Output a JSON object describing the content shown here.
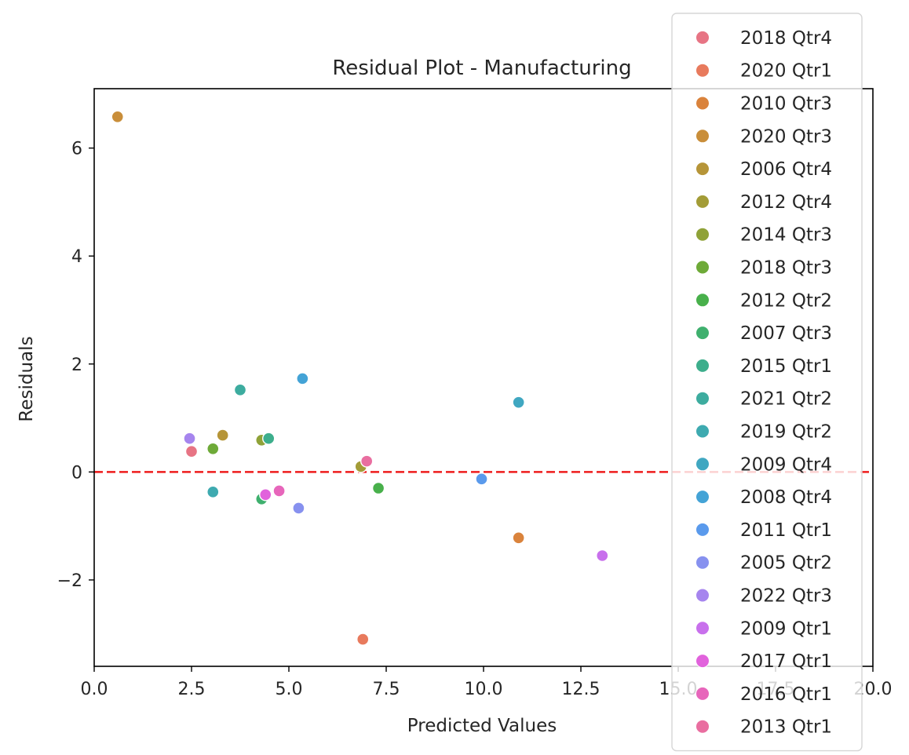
{
  "chart_data": {
    "type": "scatter",
    "title": "Residual Plot - Manufacturing",
    "xlabel": "Predicted Values",
    "ylabel": "Residuals",
    "xlim": [
      0,
      20
    ],
    "ylim": [
      -3.6,
      7.1
    ],
    "x_ticks": [
      0,
      2.5,
      5,
      7.5,
      10,
      12.5,
      15,
      17.5,
      20
    ],
    "x_tick_labels": [
      "0.0",
      "2.5",
      "5.0",
      "7.5",
      "10.0",
      "12.5",
      "15.0",
      "17.5",
      "20.0"
    ],
    "y_ticks": [
      -2,
      0,
      2,
      4,
      6
    ],
    "y_tick_labels": [
      "−2",
      "0",
      "2",
      "4",
      "6"
    ],
    "grid": false,
    "reference_line": {
      "y": 0,
      "style": "dashed",
      "color": "#ee1c1c"
    },
    "legend_placement": "upper-right, overlapping plot",
    "series": [
      {
        "name": "2018 Qtr4",
        "color": "#e77484",
        "points": [
          [
            2.5,
            0.38
          ]
        ]
      },
      {
        "name": "2020 Qtr1",
        "color": "#e87a5d",
        "points": [
          [
            6.9,
            -3.1
          ]
        ]
      },
      {
        "name": "2010 Qtr3",
        "color": "#da833c",
        "points": [
          [
            10.9,
            -1.22
          ]
        ]
      },
      {
        "name": "2020 Qtr3",
        "color": "#c98e3a",
        "points": [
          [
            0.6,
            6.58
          ]
        ]
      },
      {
        "name": "2006 Qtr4",
        "color": "#b69538",
        "points": [
          [
            3.3,
            0.68
          ]
        ]
      },
      {
        "name": "2012 Qtr4",
        "color": "#a39c37",
        "points": [
          [
            6.85,
            0.1
          ]
        ]
      },
      {
        "name": "2014 Qtr3",
        "color": "#8fa238",
        "points": [
          [
            4.3,
            0.59
          ]
        ]
      },
      {
        "name": "2018 Qtr3",
        "color": "#6eaa38",
        "points": [
          [
            3.05,
            0.43
          ]
        ]
      },
      {
        "name": "2012 Qtr2",
        "color": "#48b04b",
        "points": [
          [
            7.3,
            -0.3
          ]
        ]
      },
      {
        "name": "2007 Qtr3",
        "color": "#3fb06e",
        "points": [
          [
            4.3,
            -0.5
          ]
        ]
      },
      {
        "name": "2015 Qtr1",
        "color": "#3dae8c",
        "points": [
          [
            4.48,
            0.62
          ]
        ]
      },
      {
        "name": "2021 Qtr2",
        "color": "#3dac9f",
        "points": [
          [
            3.75,
            1.52
          ]
        ]
      },
      {
        "name": "2019 Qtr2",
        "color": "#3eaab0",
        "points": [
          [
            3.05,
            -0.37
          ]
        ]
      },
      {
        "name": "2009 Qtr4",
        "color": "#40a7c1",
        "points": [
          [
            10.9,
            1.29
          ]
        ]
      },
      {
        "name": "2008 Qtr4",
        "color": "#44a3d6",
        "points": [
          [
            5.35,
            1.73
          ]
        ]
      },
      {
        "name": "2011 Qtr1",
        "color": "#5a9aec",
        "points": [
          [
            9.95,
            -0.13
          ]
        ]
      },
      {
        "name": "2005 Qtr2",
        "color": "#8791ef",
        "points": [
          [
            5.25,
            -0.67
          ]
        ]
      },
      {
        "name": "2022 Qtr3",
        "color": "#a685ee",
        "points": [
          [
            2.45,
            0.62
          ]
        ]
      },
      {
        "name": "2009 Qtr1",
        "color": "#c870ec",
        "points": [
          [
            13.05,
            -1.55
          ]
        ]
      },
      {
        "name": "2017 Qtr1",
        "color": "#e162dc",
        "points": [
          [
            4.4,
            -0.42
          ]
        ]
      },
      {
        "name": "2016 Qtr1",
        "color": "#e766bb",
        "points": [
          [
            4.75,
            -0.35
          ]
        ]
      },
      {
        "name": "2013 Qtr1",
        "color": "#e96ea0",
        "points": [
          [
            7.0,
            0.2
          ]
        ]
      }
    ]
  }
}
